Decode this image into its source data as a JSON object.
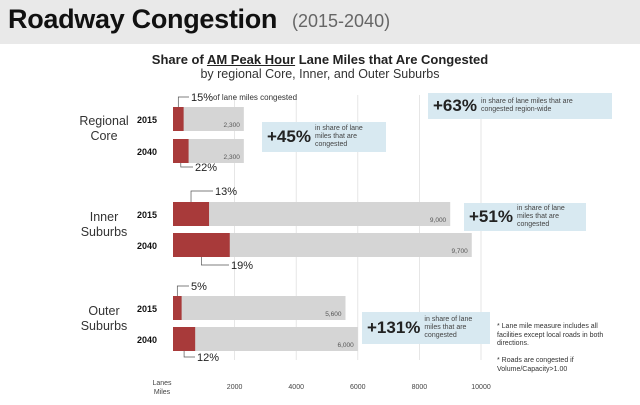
{
  "header": {
    "title": "Roadway Congestion",
    "years": "(2015-2040)"
  },
  "subtitle": {
    "pre": "Share of ",
    "underlined": "AM Peak Hour",
    "post": " Lane Miles that Are Congested",
    "line2": "by regional Core, Inner, and Outer Suburbs"
  },
  "chart_data": {
    "type": "bar",
    "orientation": "horizontal",
    "title": "Share of AM Peak Hour Lane Miles that Are Congested",
    "subtitle": "by regional Core, Inner, and Outer Suburbs",
    "xlabel": "Lanes Miles",
    "xlim": [
      0,
      10000
    ],
    "xticks": [
      2000,
      4000,
      6000,
      8000,
      10000
    ],
    "groups": [
      {
        "name": "Regional Core",
        "bars": [
          {
            "year": "2015",
            "total": 2300,
            "total_label": "2,300",
            "pct": 15,
            "pct_label": "15%",
            "pct_suffix": " of lane miles congested"
          },
          {
            "year": "2040",
            "total": 2300,
            "total_label": "2,300",
            "pct": 22,
            "pct_label": "22%"
          }
        ]
      },
      {
        "name": "Inner Suburbs",
        "bars": [
          {
            "year": "2015",
            "total": 9000,
            "total_label": "9,000",
            "pct": 13,
            "pct_label": "13%"
          },
          {
            "year": "2040",
            "total": 9700,
            "total_label": "9,700",
            "pct": 19,
            "pct_label": "19%"
          }
        ]
      },
      {
        "name": "Outer Suburbs",
        "bars": [
          {
            "year": "2015",
            "total": 5600,
            "total_label": "5,600",
            "pct": 5,
            "pct_label": "5%"
          },
          {
            "year": "2040",
            "total": 6000,
            "total_label": "6,000",
            "pct": 12,
            "pct_label": "12%"
          }
        ]
      }
    ],
    "callouts": [
      {
        "value": "+63%",
        "text": "in share of lane miles that are congested region-wide"
      },
      {
        "value": "+45%",
        "text": "in share of lane miles that are congested"
      },
      {
        "value": "+51%",
        "text": "in share of lane miles that are congested"
      },
      {
        "value": "+131%",
        "text": "in share of lane miles that are congested"
      }
    ],
    "colors": {
      "total": "#d5d5d5",
      "congested": "#a83a3a",
      "callout_bg": "#d8e9f1",
      "grid": "#e0e0e0"
    }
  },
  "notes": {
    "note1": "* Lane mile measure includes all facilities except local roads in both directions.",
    "note2": "* Roads are congested if Volume/Capacity>1.00"
  }
}
